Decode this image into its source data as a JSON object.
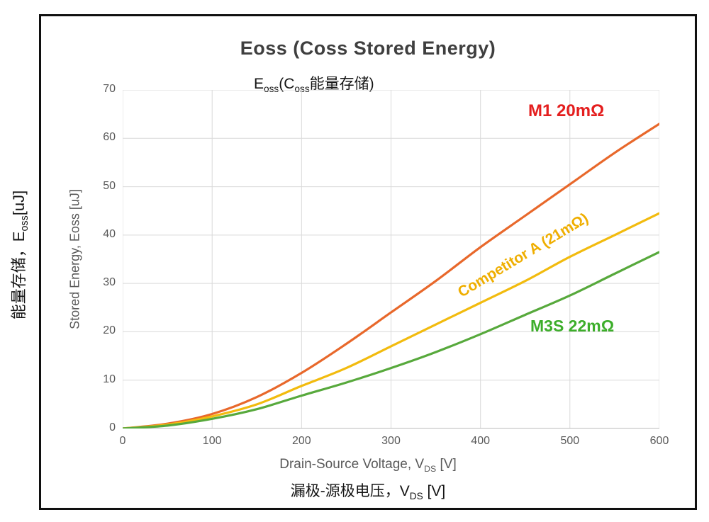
{
  "figure": {
    "title": "Eoss (Coss Stored Energy)",
    "subtitle": {
      "t1": "E",
      "s1": "oss",
      "t2": "(C",
      "s2": "oss",
      "t3": "能量存储)"
    },
    "y_axis_label": "Stored Energy, Eoss [uJ]",
    "y_axis_label_cn": {
      "t1": "能量存储，E",
      "s1": "oss",
      "t2": "[uJ]"
    },
    "x_axis_label": {
      "t1": "Drain-Source Voltage, V",
      "s1": "DS",
      "t2": " [V]"
    },
    "x_axis_label_cn": {
      "t1": "漏极-源极电压，V",
      "s1": "DS",
      "t2": " [V]"
    }
  },
  "chart_data": {
    "type": "line",
    "title": "Eoss (Coss Stored Energy)",
    "xlabel": "Drain-Source Voltage, VDS [V]",
    "ylabel": "Stored Energy, Eoss [uJ]",
    "xlim": [
      0,
      600
    ],
    "ylim": [
      0,
      70
    ],
    "x_ticks": [
      0,
      100,
      200,
      300,
      400,
      500,
      600
    ],
    "y_ticks": [
      0,
      10,
      20,
      30,
      40,
      50,
      60,
      70
    ],
    "grid": true,
    "grid_color": "#D9D9D9",
    "axis_color": "#A6A6A6",
    "tick_label_color": "#595959",
    "legend_position": "on-chart-labels",
    "x": [
      0,
      50,
      100,
      150,
      200,
      250,
      300,
      350,
      400,
      450,
      500,
      550,
      600
    ],
    "series": [
      {
        "name": "M1 20mΩ",
        "color": "#E8682B",
        "label_color": "#E41E1E",
        "values": [
          0,
          1.0,
          3.0,
          6.5,
          11.5,
          17.5,
          24.0,
          30.5,
          37.5,
          44.0,
          50.5,
          57.0,
          63.0
        ]
      },
      {
        "name": "Competitor A (21mΩ)",
        "color": "#F2BB0E",
        "label_color": "#EFAE00",
        "values": [
          0,
          0.8,
          2.5,
          5.0,
          8.8,
          12.5,
          17.0,
          21.5,
          26.0,
          30.5,
          35.5,
          40.0,
          44.5
        ]
      },
      {
        "name": "M3S 22mΩ",
        "color": "#57A93C",
        "label_color": "#3DAE2B",
        "values": [
          0,
          0.6,
          2.0,
          4.0,
          6.8,
          9.5,
          12.5,
          15.8,
          19.5,
          23.5,
          27.5,
          32.0,
          36.5
        ]
      }
    ]
  }
}
